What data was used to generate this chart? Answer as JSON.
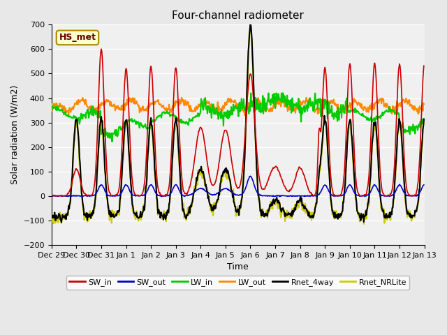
{
  "title": "Four-channel radiometer",
  "xlabel": "Time",
  "ylabel": "Solar radiation (W/m2)",
  "station_label": "HS_met",
  "ylim": [
    -200,
    700
  ],
  "yticks": [
    -200,
    -100,
    0,
    100,
    200,
    300,
    400,
    500,
    600,
    700
  ],
  "xlim_days": [
    0,
    15
  ],
  "x_tick_labels": [
    "Dec 29",
    "Dec 30",
    "Dec 31",
    "Jan 1",
    "Jan 2",
    "Jan 3",
    "Jan 4",
    "Jan 5",
    "Jan 6",
    "Jan 7",
    "Jan 8",
    "Jan 9",
    "Jan 10",
    "Jan 11",
    "Jan 12",
    "Jan 13"
  ],
  "background_color": "#e8e8e8",
  "plot_bg_color": "#f0f0f0",
  "grid_color": "#ffffff",
  "channels": [
    "SW_in",
    "SW_out",
    "LW_in",
    "LW_out",
    "Rnet_4way",
    "Rnet_NRLite"
  ],
  "colors": {
    "SW_in": "#cc0000",
    "SW_out": "#0000cc",
    "LW_in": "#00cc00",
    "LW_out": "#ff8800",
    "Rnet_4way": "#000000",
    "Rnet_NRLite": "#cccc00"
  },
  "linewidths": {
    "SW_in": 1.2,
    "SW_out": 1.2,
    "LW_in": 1.5,
    "LW_out": 1.5,
    "Rnet_4way": 1.5,
    "Rnet_NRLite": 1.5
  }
}
